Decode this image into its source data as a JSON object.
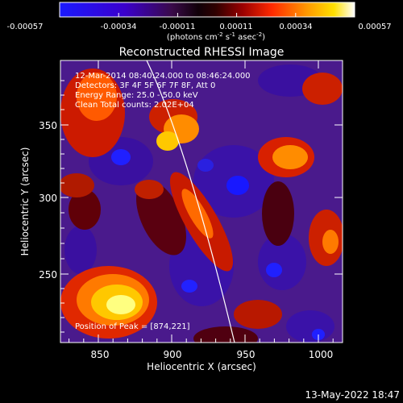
{
  "colorbar": {
    "ticks": [
      "-0.00057",
      "-0.00034",
      "-0.00011",
      "0.00011",
      "0.00034",
      "0.00057"
    ],
    "units_prefix": "(photons cm",
    "units_exp1": "-2",
    "units_mid1": " s",
    "units_exp2": "-1",
    "units_mid2": " asec",
    "units_exp3": "-2",
    "units_suffix": ")"
  },
  "plot": {
    "title": "Reconstructed RHESSI Image",
    "xlabel": "Heliocentric X (arcsec)",
    "ylabel": "Heliocentric Y (arcsec)",
    "xticks": [
      "850",
      "900",
      "950",
      "1000"
    ],
    "yticks": [
      "350",
      "300",
      "250"
    ],
    "xrange": [
      823,
      1013
    ],
    "yrange": [
      200,
      382
    ]
  },
  "annotation": {
    "line1": "12-Mar-2014 08:40:24.000 to 08:46:24.000",
    "line2": "Detectors: 3F 4F 5F 6F 7F 8F, Att 0",
    "line3": "Energy Range: 25.0 - 50.0 keV",
    "line4": "Clean    Total counts: 2.02E+04",
    "peak": "Position of Peak = [874,221]"
  },
  "footer": {
    "date": "13-May-2022 18:47"
  },
  "colors": {
    "background": "#000000",
    "foreground": "#ffffff"
  }
}
